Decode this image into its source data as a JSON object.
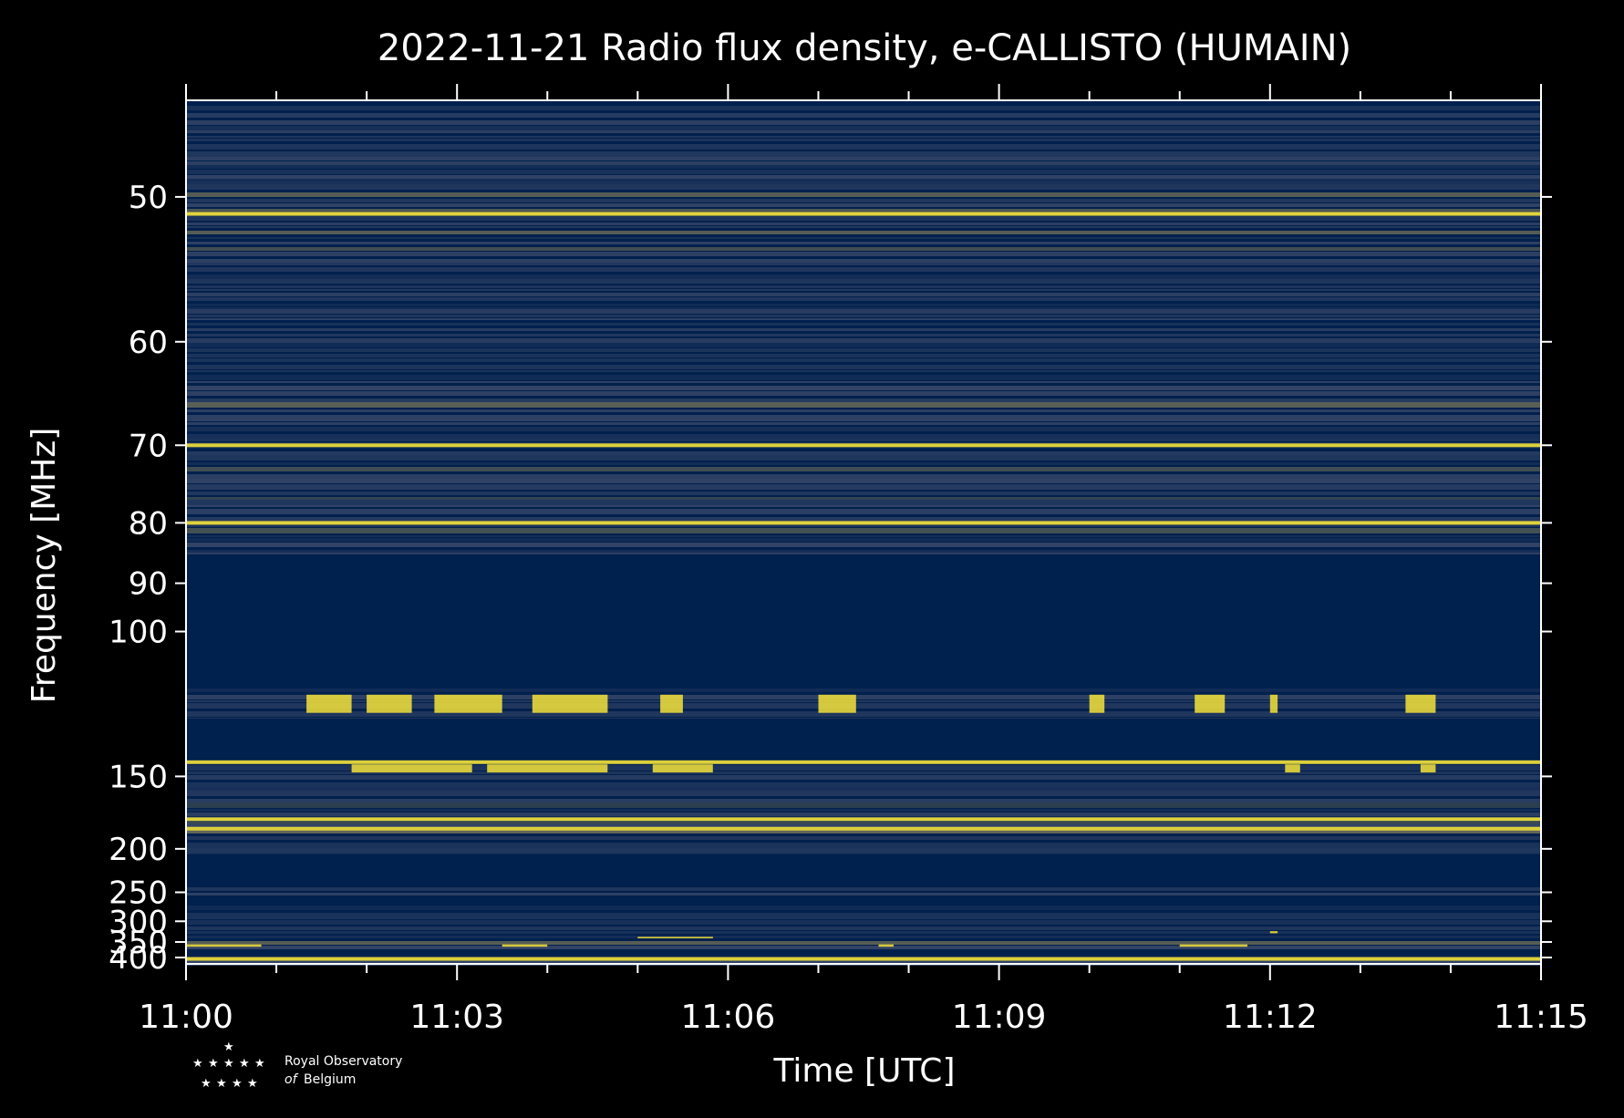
{
  "chart_data": {
    "type": "heatmap",
    "title": "2022-11-21 Radio flux density, e-CALLISTO (HUMAIN)",
    "xlabel": "Time [UTC]",
    "ylabel": "Frequency [MHz]",
    "x_range": [
      "11:00",
      "11:15"
    ],
    "x_ticks": [
      "11:00",
      "11:03",
      "11:06",
      "11:09",
      "11:12",
      "11:15"
    ],
    "y_range": [
      45,
      425
    ],
    "y_scale": "reciprocal",
    "y_ticks": [
      50,
      60,
      70,
      80,
      90,
      100,
      150,
      200,
      250,
      300,
      350,
      400
    ],
    "colors": {
      "background": "#000000",
      "low": "#00204d",
      "mid": "#3b4a6b",
      "high": "#f5e33a"
    },
    "bright_lines_mhz": [
      51,
      70,
      80,
      143,
      176,
      183,
      405
    ],
    "empty_bands_mhz": [
      [
        85,
        115
      ],
      [
        125,
        142
      ],
      [
        205,
        242
      ],
      [
        258,
        268
      ],
      [
        380,
        403
      ]
    ],
    "burst_bands": [
      {
        "freq": [
          117,
          123
        ],
        "times": [
          "11:01:20-11:01:50",
          "11:02:00-11:02:30",
          "11:02:45-11:03:30",
          "11:03:50-11:04:40",
          "11:05:15-11:05:30",
          "11:07:00-11:07:25",
          "11:10:00-11:10:10",
          "11:11:10-11:11:30",
          "11:12:00-11:12:05",
          "11:13:30-11:13:50"
        ]
      },
      {
        "freq": [
          144,
          148
        ],
        "times": [
          "11:01:50-11:03:10",
          "11:03:20-11:04:40",
          "11:05:10-11:05:50",
          "11:12:10-11:12:20",
          "11:13:40-11:13:50"
        ]
      },
      {
        "freq": [
          322,
          327
        ],
        "times": [
          "11:12:00-11:12:05"
        ]
      },
      {
        "freq": [
          336,
          340
        ],
        "times": [
          "11:05:00-11:05:50"
        ]
      },
      {
        "freq": [
          357,
          364
        ],
        "times": [
          "11:00:00-11:00:50",
          "11:03:30-11:04:00",
          "11:07:40-11:07:50",
          "11:11:00-11:11:45"
        ]
      }
    ]
  },
  "logo": {
    "line1": "Royal Observatory",
    "line2_italic": "of",
    "line2": "Belgium"
  }
}
